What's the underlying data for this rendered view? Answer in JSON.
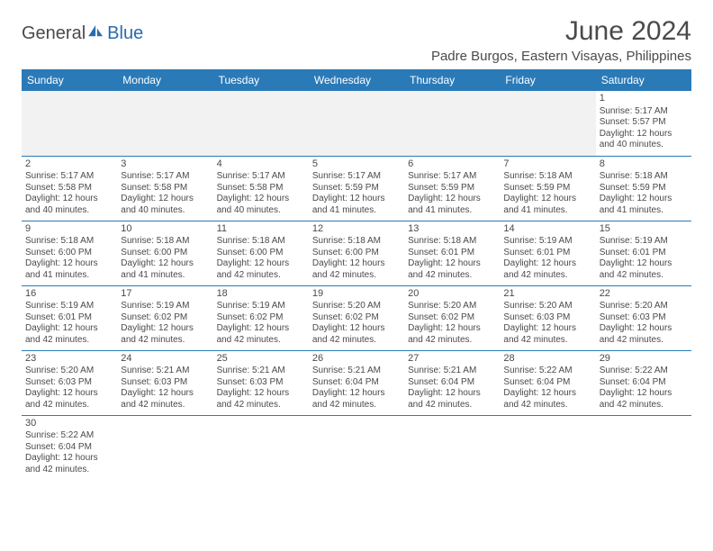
{
  "brand": {
    "part1": "General",
    "part2": "Blue"
  },
  "title": "June 2024",
  "location": "Padre Burgos, Eastern Visayas, Philippines",
  "colors": {
    "header_bg": "#2a7ab8",
    "header_fg": "#ffffff",
    "border": "#2a7ab8",
    "text": "#4a4a4a",
    "empty_bg": "#f2f2f2",
    "brand_accent": "#2a6bb0"
  },
  "weekdays": [
    "Sunday",
    "Monday",
    "Tuesday",
    "Wednesday",
    "Thursday",
    "Friday",
    "Saturday"
  ],
  "grid": [
    [
      null,
      null,
      null,
      null,
      null,
      null,
      {
        "n": "1",
        "sr": "5:17 AM",
        "ss": "5:57 PM",
        "dl": "12 hours and 40 minutes."
      }
    ],
    [
      {
        "n": "2",
        "sr": "5:17 AM",
        "ss": "5:58 PM",
        "dl": "12 hours and 40 minutes."
      },
      {
        "n": "3",
        "sr": "5:17 AM",
        "ss": "5:58 PM",
        "dl": "12 hours and 40 minutes."
      },
      {
        "n": "4",
        "sr": "5:17 AM",
        "ss": "5:58 PM",
        "dl": "12 hours and 40 minutes."
      },
      {
        "n": "5",
        "sr": "5:17 AM",
        "ss": "5:59 PM",
        "dl": "12 hours and 41 minutes."
      },
      {
        "n": "6",
        "sr": "5:17 AM",
        "ss": "5:59 PM",
        "dl": "12 hours and 41 minutes."
      },
      {
        "n": "7",
        "sr": "5:18 AM",
        "ss": "5:59 PM",
        "dl": "12 hours and 41 minutes."
      },
      {
        "n": "8",
        "sr": "5:18 AM",
        "ss": "5:59 PM",
        "dl": "12 hours and 41 minutes."
      }
    ],
    [
      {
        "n": "9",
        "sr": "5:18 AM",
        "ss": "6:00 PM",
        "dl": "12 hours and 41 minutes."
      },
      {
        "n": "10",
        "sr": "5:18 AM",
        "ss": "6:00 PM",
        "dl": "12 hours and 41 minutes."
      },
      {
        "n": "11",
        "sr": "5:18 AM",
        "ss": "6:00 PM",
        "dl": "12 hours and 42 minutes."
      },
      {
        "n": "12",
        "sr": "5:18 AM",
        "ss": "6:00 PM",
        "dl": "12 hours and 42 minutes."
      },
      {
        "n": "13",
        "sr": "5:18 AM",
        "ss": "6:01 PM",
        "dl": "12 hours and 42 minutes."
      },
      {
        "n": "14",
        "sr": "5:19 AM",
        "ss": "6:01 PM",
        "dl": "12 hours and 42 minutes."
      },
      {
        "n": "15",
        "sr": "5:19 AM",
        "ss": "6:01 PM",
        "dl": "12 hours and 42 minutes."
      }
    ],
    [
      {
        "n": "16",
        "sr": "5:19 AM",
        "ss": "6:01 PM",
        "dl": "12 hours and 42 minutes."
      },
      {
        "n": "17",
        "sr": "5:19 AM",
        "ss": "6:02 PM",
        "dl": "12 hours and 42 minutes."
      },
      {
        "n": "18",
        "sr": "5:19 AM",
        "ss": "6:02 PM",
        "dl": "12 hours and 42 minutes."
      },
      {
        "n": "19",
        "sr": "5:20 AM",
        "ss": "6:02 PM",
        "dl": "12 hours and 42 minutes."
      },
      {
        "n": "20",
        "sr": "5:20 AM",
        "ss": "6:02 PM",
        "dl": "12 hours and 42 minutes."
      },
      {
        "n": "21",
        "sr": "5:20 AM",
        "ss": "6:03 PM",
        "dl": "12 hours and 42 minutes."
      },
      {
        "n": "22",
        "sr": "5:20 AM",
        "ss": "6:03 PM",
        "dl": "12 hours and 42 minutes."
      }
    ],
    [
      {
        "n": "23",
        "sr": "5:20 AM",
        "ss": "6:03 PM",
        "dl": "12 hours and 42 minutes."
      },
      {
        "n": "24",
        "sr": "5:21 AM",
        "ss": "6:03 PM",
        "dl": "12 hours and 42 minutes."
      },
      {
        "n": "25",
        "sr": "5:21 AM",
        "ss": "6:03 PM",
        "dl": "12 hours and 42 minutes."
      },
      {
        "n": "26",
        "sr": "5:21 AM",
        "ss": "6:04 PM",
        "dl": "12 hours and 42 minutes."
      },
      {
        "n": "27",
        "sr": "5:21 AM",
        "ss": "6:04 PM",
        "dl": "12 hours and 42 minutes."
      },
      {
        "n": "28",
        "sr": "5:22 AM",
        "ss": "6:04 PM",
        "dl": "12 hours and 42 minutes."
      },
      {
        "n": "29",
        "sr": "5:22 AM",
        "ss": "6:04 PM",
        "dl": "12 hours and 42 minutes."
      }
    ],
    [
      {
        "n": "30",
        "sr": "5:22 AM",
        "ss": "6:04 PM",
        "dl": "12 hours and 42 minutes."
      },
      null,
      null,
      null,
      null,
      null,
      null
    ]
  ],
  "labels": {
    "sunrise": "Sunrise:",
    "sunset": "Sunset:",
    "daylight": "Daylight:"
  }
}
